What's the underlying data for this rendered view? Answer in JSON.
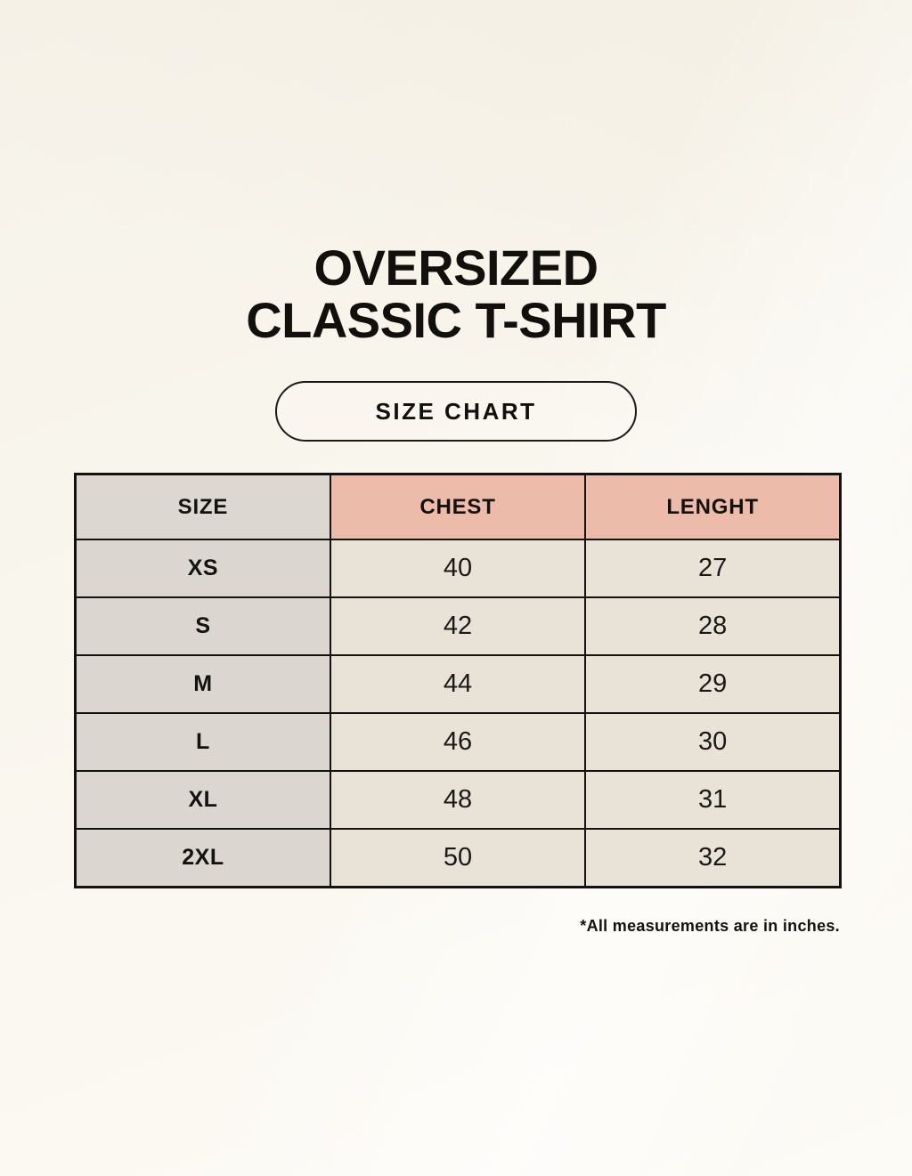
{
  "chart_data": {
    "type": "table",
    "title": "OVERSIZED CLASSIC T-SHIRT",
    "subtitle": "SIZE CHART",
    "columns": [
      "SIZE",
      "CHEST",
      "LENGHT"
    ],
    "rows": [
      [
        "XS",
        40,
        27
      ],
      [
        "S",
        42,
        28
      ],
      [
        "M",
        44,
        29
      ],
      [
        "L",
        46,
        30
      ],
      [
        "XL",
        48,
        31
      ],
      [
        "2XL",
        50,
        32
      ]
    ],
    "footnote": "*All measurements are in inches."
  },
  "title": {
    "line1": "OVERSIZED",
    "line2": "CLASSIC T-SHIRT"
  },
  "size_chart_button": {
    "label": "SIZE CHART"
  },
  "table": {
    "headers": {
      "size": "SIZE",
      "chest": "CHEST",
      "length": "LENGHT"
    },
    "rows": [
      {
        "size": "XS",
        "chest": "40",
        "length": "27"
      },
      {
        "size": "S",
        "chest": "42",
        "length": "28"
      },
      {
        "size": "M",
        "chest": "44",
        "length": "29"
      },
      {
        "size": "L",
        "chest": "46",
        "length": "30"
      },
      {
        "size": "XL",
        "chest": "48",
        "length": "31"
      },
      {
        "size": "2XL",
        "chest": "50",
        "length": "32"
      }
    ]
  },
  "footnote": "*All measurements are in inches.",
  "colors": {
    "background": "#f9f6ee",
    "header_pink": "#edbbaa",
    "header_gray": "#ddd7d2",
    "size_cell_gray": "#dcd6d0",
    "value_cell_cream": "#e9e3d7",
    "border": "#131210",
    "text": "#12100d"
  }
}
